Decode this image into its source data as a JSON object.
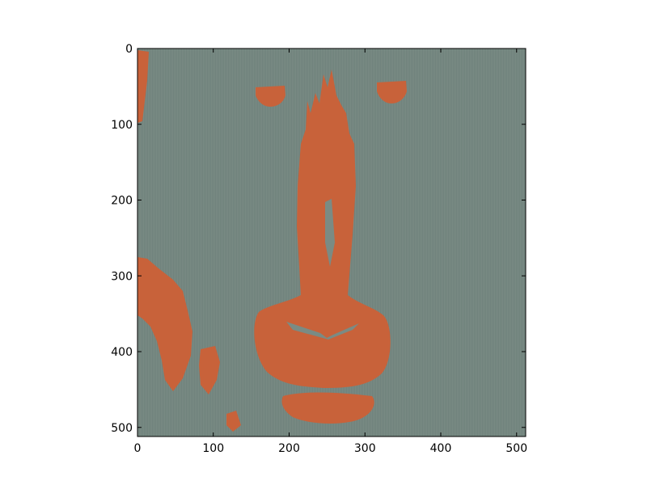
{
  "figure": {
    "colors": {
      "background": "#7a8b84",
      "foreground": "#c8623a",
      "axes": "#000000"
    }
  },
  "chart_data": {
    "type": "heatmap",
    "title": "",
    "xlabel": "",
    "ylabel": "",
    "xlim": [
      0,
      512
    ],
    "ylim": [
      512,
      0
    ],
    "x_ticks": [
      "0",
      "100",
      "200",
      "300",
      "400",
      "500"
    ],
    "y_ticks": [
      "0",
      "100",
      "200",
      "300",
      "400",
      "500"
    ],
    "grid": false
  }
}
